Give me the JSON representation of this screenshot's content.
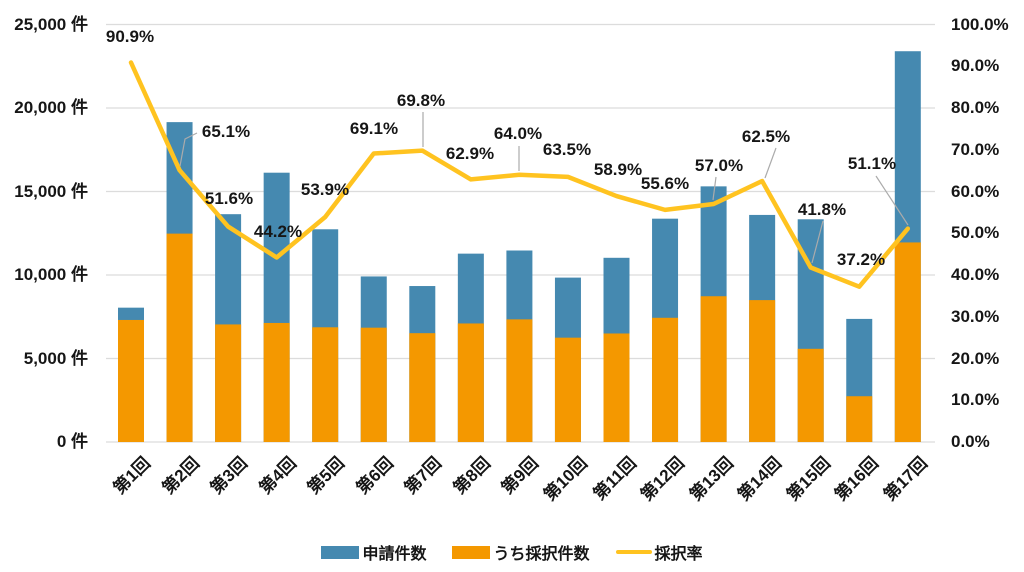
{
  "chart_data": {
    "type": "combo-bar-line",
    "title": "",
    "categories": [
      "第1回",
      "第2回",
      "第3回",
      "第4回",
      "第5回",
      "第6回",
      "第7回",
      "第8回",
      "第9回",
      "第10回",
      "第11回",
      "第12回",
      "第13回",
      "第14回",
      "第15回",
      "第16回",
      "第17回"
    ],
    "series": [
      {
        "name": "申請件数",
        "type": "bar",
        "axis": "left",
        "color": "#4589B0",
        "values": [
          8044,
          19154,
          13642,
          16126,
          12738,
          9914,
          9339,
          11279,
          11467,
          9844,
          11030,
          13373,
          15308,
          13597,
          13336,
          7371,
          23400
        ]
      },
      {
        "name": "うち採択件数",
        "type": "bar-overlay",
        "axis": "left",
        "color": "#F49800",
        "values": [
          7308,
          12478,
          7040,
          7128,
          6869,
          6846,
          6517,
          7098,
          7344,
          6248,
          6498,
          7438,
          8729,
          8497,
          5580,
          2741,
          11950
        ]
      },
      {
        "name": "採択率",
        "type": "line",
        "axis": "right",
        "color": "#FFC320",
        "values": [
          90.9,
          65.1,
          51.6,
          44.2,
          53.9,
          69.1,
          69.8,
          62.9,
          64.0,
          63.5,
          58.9,
          55.6,
          57.0,
          62.5,
          41.8,
          37.2,
          51.1
        ]
      }
    ],
    "rate_labels": [
      "90.9%",
      "65.1%",
      "51.6%",
      "44.2%",
      "53.9%",
      "69.1%",
      "69.8%",
      "62.9%",
      "64.0%",
      "63.5%",
      "58.9%",
      "55.6%",
      "57.0%",
      "62.5%",
      "41.8%",
      "37.2%",
      "51.1%"
    ],
    "left_axis": {
      "min": 0,
      "max": 25000,
      "step": 5000,
      "tick_labels": [
        "0 件",
        "5,000 件",
        "10,000 件",
        "15,000 件",
        "20,000 件",
        "25,000 件"
      ]
    },
    "right_axis": {
      "min": 0,
      "max": 100,
      "step": 10,
      "tick_labels": [
        "0.0%",
        "10.0%",
        "20.0%",
        "30.0%",
        "40.0%",
        "50.0%",
        "60.0%",
        "70.0%",
        "80.0%",
        "90.0%",
        "100.0%"
      ]
    },
    "legend": {
      "position": "bottom",
      "items": [
        {
          "label": "申請件数",
          "swatch": "rect",
          "color": "#4589B0"
        },
        {
          "label": "うち採択件数",
          "swatch": "rect",
          "color": "#F49800"
        },
        {
          "label": "採択率",
          "swatch": "line",
          "color": "#FFC320"
        }
      ]
    },
    "grid": true,
    "colors": {
      "gridline": "#DCDCDC",
      "leader_line": "#ABABAB",
      "text": "#161616",
      "background": "#FFFFFF"
    }
  }
}
